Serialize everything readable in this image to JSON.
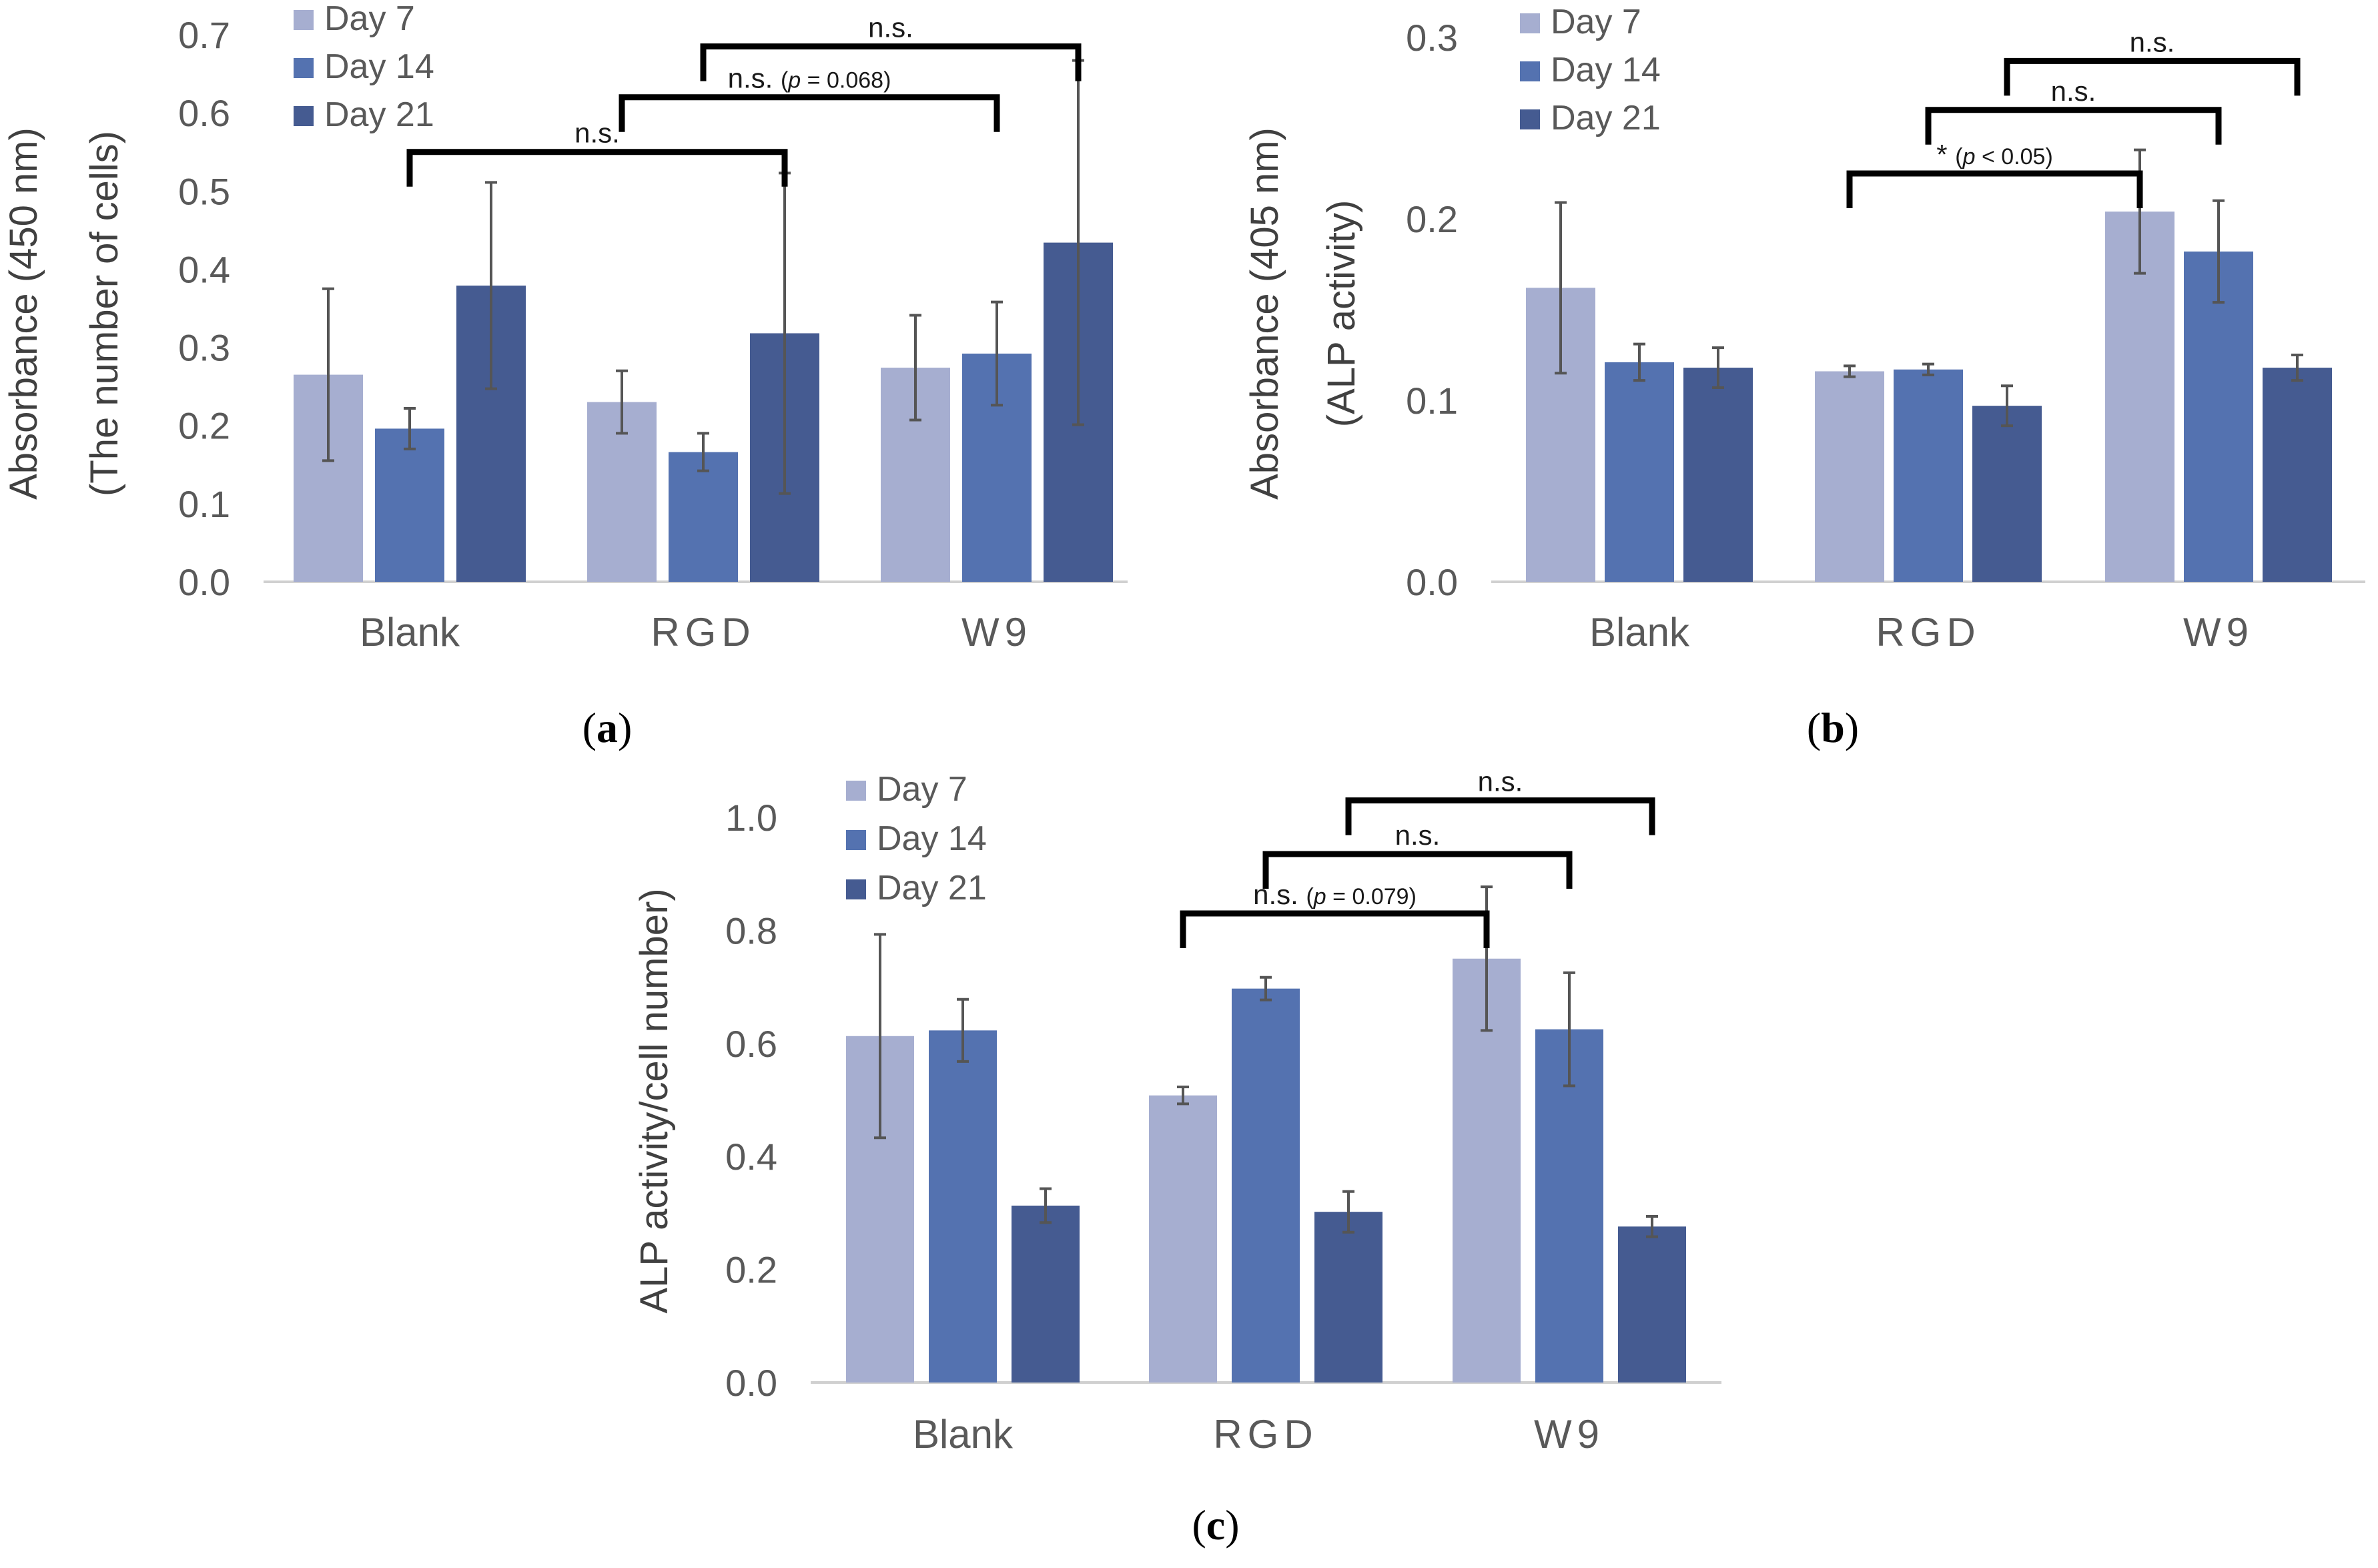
{
  "colors": {
    "Day 7": "#a6aed0",
    "Day 14": "#5472b0",
    "Day 21": "#455b91"
  },
  "panels": [
    {
      "label_open": "(",
      "label": "a",
      "label_close": ")"
    },
    {
      "label_open": "(",
      "label": "b",
      "label_close": ")"
    },
    {
      "label_open": "(",
      "label": "c",
      "label_close": ")"
    }
  ],
  "chart_data": [
    {
      "type": "bar",
      "categories": [
        "Blank",
        "RGD",
        "W9"
      ],
      "series": [
        {
          "name": "Day 7",
          "values": [
            0.265,
            0.23,
            0.274
          ],
          "errors": [
            0.11,
            0.04,
            0.067
          ]
        },
        {
          "name": "Day 14",
          "values": [
            0.196,
            0.166,
            0.292
          ],
          "errors": [
            0.026,
            0.024,
            0.066
          ]
        },
        {
          "name": "Day 21",
          "values": [
            0.379,
            0.318,
            0.434
          ],
          "errors": [
            0.132,
            0.205,
            0.233
          ]
        }
      ],
      "ylabel_line1": "Absorbance (450 nm)",
      "ylabel_line2": "(The number of cells)",
      "ylim": [
        0,
        0.7
      ],
      "ytick_labels": [
        "0.0",
        "0.1",
        "0.2",
        "0.3",
        "0.4",
        "0.5",
        "0.6",
        "0.7"
      ],
      "legend": [
        "Day 7",
        "Day 14",
        "Day 21"
      ],
      "annotations": [
        {
          "text": "n.s.",
          "p_open": "",
          "p_italic": "",
          "p_rest": "",
          "p_close": "",
          "from": [
            "Blank",
            "Day 14"
          ],
          "to": [
            "RGD",
            "Day 21"
          ],
          "level": 0.55
        },
        {
          "text": "n.s.",
          "p_open": "(",
          "p_italic": "p",
          "p_rest": " = 0.068",
          "p_close": ")",
          "from": [
            "RGD",
            "Day 7"
          ],
          "to": [
            "W9",
            "Day 14"
          ],
          "level": 0.62
        },
        {
          "text": "n.s.",
          "p_open": "",
          "p_italic": "",
          "p_rest": "",
          "p_close": "",
          "from": [
            "RGD",
            "Day 14"
          ],
          "to": [
            "W9",
            "Day 21"
          ],
          "level": 0.685
        }
      ]
    },
    {
      "type": "bar",
      "categories": [
        "Blank",
        "RGD",
        "W9"
      ],
      "series": [
        {
          "name": "Day 7",
          "values": [
            0.162,
            0.116,
            0.204
          ],
          "errors": [
            0.047,
            0.003,
            0.034
          ]
        },
        {
          "name": "Day 14",
          "values": [
            0.121,
            0.117,
            0.182
          ],
          "errors": [
            0.01,
            0.003,
            0.028
          ]
        },
        {
          "name": "Day 21",
          "values": [
            0.118,
            0.097,
            0.118
          ],
          "errors": [
            0.011,
            0.011,
            0.007
          ]
        }
      ],
      "ylabel_line1": "Absorbance (405 nm)",
      "ylabel_line2": "(ALP activity)",
      "ylim": [
        0,
        0.3
      ],
      "ytick_labels": [
        "0.0",
        "0.1",
        "0.2",
        "0.3"
      ],
      "legend": [
        "Day 7",
        "Day 14",
        "Day 21"
      ],
      "annotations": [
        {
          "text": "*",
          "p_open": "(",
          "p_italic": "p",
          "p_rest": " < 0.05",
          "p_close": ")",
          "from": [
            "RGD",
            "Day 7"
          ],
          "to": [
            "W9",
            "Day 7"
          ],
          "level": 0.225
        },
        {
          "text": "n.s.",
          "p_open": "",
          "p_italic": "",
          "p_rest": "",
          "p_close": "",
          "from": [
            "RGD",
            "Day 14"
          ],
          "to": [
            "W9",
            "Day 14"
          ],
          "level": 0.26
        },
        {
          "text": "n.s.",
          "p_open": "",
          "p_italic": "",
          "p_rest": "",
          "p_close": "",
          "from": [
            "RGD",
            "Day 21"
          ],
          "to": [
            "W9",
            "Day 21"
          ],
          "level": 0.287
        }
      ]
    },
    {
      "type": "bar",
      "categories": [
        "Blank",
        "RGD",
        "W9"
      ],
      "series": [
        {
          "name": "Day 7",
          "values": [
            0.613,
            0.508,
            0.75
          ],
          "errors": [
            0.18,
            0.015,
            0.127
          ]
        },
        {
          "name": "Day 14",
          "values": [
            0.623,
            0.697,
            0.625
          ],
          "errors": [
            0.055,
            0.02,
            0.1
          ]
        },
        {
          "name": "Day 21",
          "values": [
            0.313,
            0.302,
            0.276
          ],
          "errors": [
            0.03,
            0.036,
            0.018
          ]
        }
      ],
      "ylabel_line1": "ALP activity/cell number)",
      "ylabel_line2": "",
      "ylim": [
        0,
        1.0
      ],
      "ytick_labels": [
        "0.0",
        "0.2",
        "0.4",
        "0.6",
        "0.8",
        "1.0"
      ],
      "legend": [
        "Day 7",
        "Day 14",
        "Day 21"
      ],
      "annotations": [
        {
          "text": "n.s.",
          "p_open": "(",
          "p_italic": "p",
          "p_rest": " = 0.079",
          "p_close": ")",
          "from": [
            "RGD",
            "Day 7"
          ],
          "to": [
            "W9",
            "Day 7"
          ],
          "level": 0.83
        },
        {
          "text": "n.s.",
          "p_open": "",
          "p_italic": "",
          "p_rest": "",
          "p_close": "",
          "from": [
            "RGD",
            "Day 14"
          ],
          "to": [
            "W9",
            "Day 14"
          ],
          "level": 0.935
        },
        {
          "text": "n.s.",
          "p_open": "",
          "p_italic": "",
          "p_rest": "",
          "p_close": "",
          "from": [
            "RGD",
            "Day 21"
          ],
          "to": [
            "W9",
            "Day 21"
          ],
          "level": 1.03
        }
      ]
    }
  ]
}
